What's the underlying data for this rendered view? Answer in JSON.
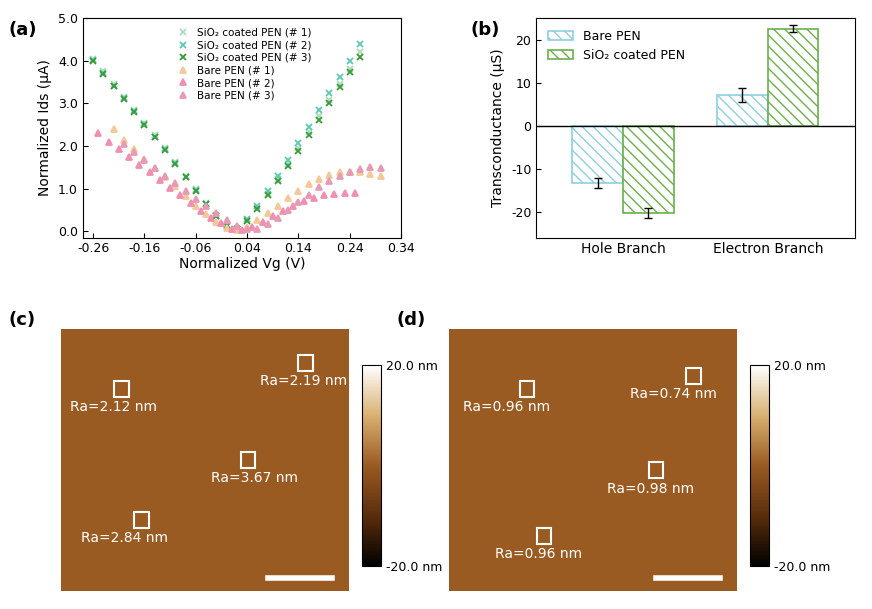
{
  "chart_data": [
    {
      "type": "scatter",
      "x_label": "Normalized Vg (V)",
      "y_label": "Normalized Ids (μA)",
      "annotations": [
        "(a)"
      ],
      "xlim": [
        -0.28,
        0.34
      ],
      "xticks": [
        -0.26,
        -0.16,
        -0.06,
        0.04,
        0.14,
        0.24,
        0.34
      ],
      "ylim": [
        -0.15,
        5.0
      ],
      "yticks": [
        {
          "value": 0,
          "label": "0.0"
        },
        {
          "value": 1,
          "label": "1.0"
        },
        {
          "value": 2,
          "label": "2.0"
        },
        {
          "value": 3,
          "label": "3.0"
        },
        {
          "value": 4,
          "label": "4.0"
        },
        {
          "value": 5,
          "label": "5.0"
        }
      ],
      "legend": "upper center",
      "series": [
        {
          "name": "SiO₂ coated PEN (# 1)",
          "color": "#a8e0b4",
          "marker": "x",
          "line_style": "none",
          "x": [
            -0.26,
            -0.24,
            -0.22,
            -0.2,
            -0.18,
            -0.16,
            -0.14,
            -0.12,
            -0.1,
            -0.08,
            -0.06,
            -0.04,
            -0.02,
            0.0,
            0.02,
            0.04,
            0.06,
            0.08,
            0.1,
            0.12,
            0.14,
            0.16,
            0.18,
            0.2,
            0.22,
            0.24,
            0.26
          ],
          "values": [
            4.05,
            3.75,
            3.45,
            3.15,
            2.85,
            2.55,
            2.25,
            1.95,
            1.62,
            1.3,
            0.98,
            0.66,
            0.38,
            0.15,
            0.05,
            0.25,
            0.55,
            0.88,
            1.22,
            1.58,
            1.95,
            2.32,
            2.7,
            3.08,
            3.45,
            3.82,
            4.2
          ]
        },
        {
          "name": "SiO₂ coated PEN (# 2)",
          "color": "#5cc8b0",
          "marker": "x",
          "line_style": "none",
          "x": [
            -0.26,
            -0.24,
            -0.22,
            -0.2,
            -0.18,
            -0.16,
            -0.14,
            -0.12,
            -0.1,
            -0.08,
            -0.06,
            -0.04,
            -0.02,
            0.0,
            0.02,
            0.04,
            0.06,
            0.08,
            0.1,
            0.12,
            0.14,
            0.16,
            0.18,
            0.2,
            0.22,
            0.24,
            0.26
          ],
          "values": [
            4.02,
            3.72,
            3.42,
            3.12,
            2.82,
            2.52,
            2.22,
            1.92,
            1.6,
            1.28,
            0.96,
            0.64,
            0.36,
            0.14,
            0.05,
            0.28,
            0.6,
            0.95,
            1.3,
            1.68,
            2.06,
            2.45,
            2.85,
            3.25,
            3.62,
            4.0,
            4.4
          ]
        },
        {
          "name": "SiO₂ coated PEN (# 3)",
          "color": "#3a9a3a",
          "marker": "x",
          "line_style": "none",
          "x": [
            -0.26,
            -0.24,
            -0.22,
            -0.2,
            -0.18,
            -0.16,
            -0.14,
            -0.12,
            -0.1,
            -0.08,
            -0.06,
            -0.04,
            -0.02,
            0.0,
            0.02,
            0.04,
            0.06,
            0.08,
            0.1,
            0.12,
            0.14,
            0.16,
            0.18,
            0.2,
            0.22,
            0.24,
            0.26
          ],
          "values": [
            4.0,
            3.7,
            3.4,
            3.1,
            2.8,
            2.5,
            2.2,
            1.9,
            1.58,
            1.26,
            0.95,
            0.63,
            0.35,
            0.13,
            0.05,
            0.24,
            0.52,
            0.84,
            1.18,
            1.52,
            1.88,
            2.25,
            2.62,
            3.0,
            3.38,
            3.74,
            4.1
          ]
        },
        {
          "name": "Bare PEN (# 1)",
          "color": "#f5c89a",
          "marker": "triangle",
          "line_style": "none",
          "x": [
            -0.22,
            -0.2,
            -0.18,
            -0.16,
            -0.14,
            -0.12,
            -0.1,
            -0.08,
            -0.06,
            -0.04,
            -0.02,
            0.0,
            0.02,
            0.04,
            0.06,
            0.08,
            0.1,
            0.12,
            0.14,
            0.16,
            0.18,
            0.2,
            0.22,
            0.24,
            0.26,
            0.28,
            0.3
          ],
          "values": [
            2.4,
            2.15,
            1.92,
            1.7,
            1.48,
            1.26,
            1.05,
            0.82,
            0.6,
            0.4,
            0.22,
            0.08,
            0.02,
            0.1,
            0.25,
            0.42,
            0.6,
            0.78,
            0.95,
            1.1,
            1.22,
            1.32,
            1.38,
            1.4,
            1.38,
            1.35,
            1.3
          ]
        },
        {
          "name": "Bare PEN (# 2)",
          "color": "#f08fb0",
          "marker": "triangle",
          "line_style": "none",
          "x": [
            -0.25,
            -0.23,
            -0.21,
            -0.19,
            -0.17,
            -0.15,
            -0.13,
            -0.11,
            -0.09,
            -0.07,
            -0.05,
            -0.03,
            -0.01,
            0.01,
            0.03,
            0.05,
            0.07,
            0.09,
            0.11,
            0.13,
            0.15,
            0.17,
            0.19,
            0.21,
            0.23,
            0.25
          ],
          "values": [
            2.3,
            2.1,
            1.92,
            1.74,
            1.56,
            1.38,
            1.2,
            1.02,
            0.84,
            0.66,
            0.48,
            0.32,
            0.18,
            0.06,
            0.02,
            0.1,
            0.22,
            0.35,
            0.48,
            0.6,
            0.7,
            0.78,
            0.84,
            0.88,
            0.9,
            0.9
          ]
        },
        {
          "name": "Bare PEN (# 3)",
          "color": "#e79ab4",
          "marker": "triangle",
          "line_style": "none",
          "x": [
            -0.2,
            -0.18,
            -0.16,
            -0.14,
            -0.12,
            -0.1,
            -0.08,
            -0.06,
            -0.04,
            -0.02,
            0.0,
            0.02,
            0.04,
            0.06,
            0.08,
            0.1,
            0.12,
            0.14,
            0.16,
            0.18,
            0.2,
            0.22,
            0.24,
            0.26,
            0.28,
            0.3
          ],
          "values": [
            2.05,
            1.86,
            1.67,
            1.48,
            1.3,
            1.12,
            0.94,
            0.76,
            0.58,
            0.42,
            0.27,
            0.13,
            0.04,
            0.05,
            0.16,
            0.32,
            0.5,
            0.68,
            0.86,
            1.03,
            1.18,
            1.3,
            1.4,
            1.46,
            1.5,
            1.48
          ]
        }
      ]
    },
    {
      "type": "bar",
      "y_label": "Transconductance (μS)",
      "annotations": [
        "(b)"
      ],
      "categories": [
        "Hole Branch",
        "Electron Branch"
      ],
      "ylim": [
        -26,
        25
      ],
      "yticks": [
        -20,
        -10,
        0,
        10,
        20
      ],
      "legend": "upper left",
      "series": [
        {
          "name": "Bare PEN",
          "color": "#8fcfe0",
          "values": [
            -13.3,
            7.1
          ],
          "errors": [
            1.2,
            1.6
          ]
        },
        {
          "name": "SiO₂ coated PEN",
          "color": "#6ab04c",
          "values": [
            -20.3,
            22.6
          ],
          "errors": [
            1.1,
            0.8
          ]
        }
      ]
    },
    {
      "type": "image",
      "annotations": [
        "(c)",
        "Ra=2.12 nm",
        "Ra=2.19 nm",
        "Ra=3.67 nm",
        "Ra=2.84 nm"
      ],
      "tick_labels": false,
      "colorbar_range": [
        -20,
        20
      ],
      "colorbar_ticks": [
        {
          "value": 20,
          "label": "20.0 nm"
        },
        {
          "value": -20,
          "label": "-20.0 nm"
        }
      ]
    },
    {
      "type": "image",
      "annotations": [
        "(d)",
        "Ra=0.96 nm",
        "Ra=0.74 nm",
        "Ra=0.98 nm",
        "Ra=0.96 nm"
      ],
      "tick_labels": false,
      "colorbar_range": [
        -20,
        20
      ],
      "colorbar_ticks": [
        {
          "value": 20,
          "label": "20.0 nm"
        },
        {
          "value": -20,
          "label": "-20.0 nm"
        }
      ]
    }
  ]
}
